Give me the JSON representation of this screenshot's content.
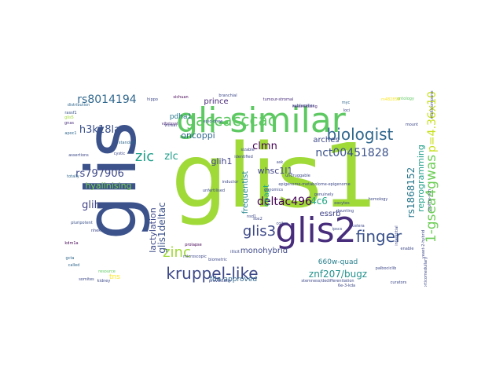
{
  "palette": {
    "dark_purple": "#440154",
    "indigo": "#46327e",
    "blue": "#365c8d",
    "steel": "#277f8e",
    "teal": "#1fa187",
    "green": "#4ac16d",
    "light_green": "#a0da39",
    "yellow": "#fde725"
  },
  "words": [
    {
      "text": "glis1",
      "color": "#a0da39"
    },
    {
      "text": "glis",
      "color": "#3b528b"
    },
    {
      "text": "gli-similar",
      "color": "#5ec962"
    },
    {
      "text": "glis2",
      "color": "#472d7b"
    },
    {
      "text": "kruppel-like",
      "color": "#3e4989"
    },
    {
      "text": "biologist",
      "color": "#31688e"
    },
    {
      "text": "gaccacccac",
      "color": "#5ec962"
    },
    {
      "text": "finger",
      "color": "#3b528b"
    },
    {
      "text": "zinc",
      "color": "#a0da39"
    },
    {
      "text": "1-gsea4gwas",
      "color": "#6ece58"
    },
    {
      "text": "p=4.36x10",
      "color": "#c8e020"
    },
    {
      "text": "glis3",
      "color": "#3e4989"
    },
    {
      "text": "deltac496",
      "color": "#440154"
    },
    {
      "text": "nct00451828",
      "color": "#3b528b"
    },
    {
      "text": "zic",
      "color": "#1f9e89"
    },
    {
      "text": "rs8014194",
      "color": "#31688e"
    },
    {
      "text": "h3k18la",
      "color": "#3b528b"
    },
    {
      "text": "rs797906",
      "color": "#3e4989"
    },
    {
      "text": "glih",
      "color": "#414487"
    },
    {
      "text": "glih1",
      "color": "#414487"
    },
    {
      "text": "clmn",
      "color": "#440154"
    },
    {
      "text": "zlc",
      "color": "#1f9e89"
    },
    {
      "text": "oncoppi",
      "color": "#31688e"
    },
    {
      "text": "lactylation",
      "color": "#3e4989"
    },
    {
      "text": "glis1deltac",
      "color": "#3b528b"
    },
    {
      "text": "hyalinising",
      "color": "#7ad151"
    },
    {
      "text": "whsc1l1",
      "color": "#414487"
    },
    {
      "text": "monohybrid",
      "color": "#3e4989"
    },
    {
      "text": "arches",
      "color": "#3e4989"
    },
    {
      "text": "reprogramming",
      "color": "#1f9e89"
    },
    {
      "text": "rs1868152",
      "color": "#2a788e"
    },
    {
      "text": "znf207/bugz",
      "color": "#21918c"
    },
    {
      "text": "fda-approved",
      "color": "#31688e"
    },
    {
      "text": "660w-quad",
      "color": "#277f8e"
    },
    {
      "text": "coapt",
      "color": "#22a884"
    },
    {
      "text": "4c6",
      "color": "#22a884"
    },
    {
      "text": "essrb",
      "color": "#414487"
    },
    {
      "text": "frequentist",
      "color": "#25858e"
    },
    {
      "text": "prince",
      "color": "#482878"
    },
    {
      "text": "pdha1",
      "color": "#2a788e"
    },
    {
      "text": "tns",
      "color": "#fde725"
    },
    {
      "text": "ontology",
      "color": "#5ec962"
    },
    {
      "text": "resensitizing",
      "color": "#482878"
    },
    {
      "text": "distribution",
      "color": "#31688e"
    },
    {
      "text": "hippo",
      "color": "#3e4989"
    },
    {
      "text": "sichuan",
      "color": "#440154"
    },
    {
      "text": "branchial",
      "color": "#3e4989"
    },
    {
      "text": "tumour-stromal",
      "color": "#472d7b"
    },
    {
      "text": "rs482858",
      "color": "#fde725"
    },
    {
      "text": "myc",
      "color": "#31688e"
    },
    {
      "text": "loci",
      "color": "#414487"
    },
    {
      "text": "rassf1",
      "color": "#3b528b"
    },
    {
      "text": "glis5",
      "color": "#a0da39"
    },
    {
      "text": "gnas",
      "color": "#472d7b"
    },
    {
      "text": "apoc1",
      "color": "#31688e"
    },
    {
      "text": "assertions",
      "color": "#3e4989"
    },
    {
      "text": "totally",
      "color": "#31688e"
    },
    {
      "text": "pluripotent",
      "color": "#3b528b"
    },
    {
      "text": "nhek",
      "color": "#3e4989"
    },
    {
      "text": "kdm1a",
      "color": "#440154"
    },
    {
      "text": "gcta",
      "color": "#31688e"
    },
    {
      "text": "called",
      "color": "#31688e"
    },
    {
      "text": "somites",
      "color": "#3e4989"
    },
    {
      "text": "standard",
      "color": "#31688e"
    },
    {
      "text": "vitreal",
      "color": "#414487"
    },
    {
      "text": "epic-drew",
      "color": "#3b528b"
    },
    {
      "text": "cystic",
      "color": "#3e4989"
    },
    {
      "text": "vibrissal",
      "color": "#482878"
    },
    {
      "text": "resource",
      "color": "#5ec962"
    },
    {
      "text": "kidney",
      "color": "#3e4989"
    },
    {
      "text": "pravastatin",
      "color": "#3e4989"
    },
    {
      "text": "stemness/dedifferentiation",
      "color": "#3e4989"
    },
    {
      "text": "curators",
      "color": "#3e4989"
    },
    {
      "text": "palbociclib",
      "color": "#3e4989"
    },
    {
      "text": "ipscs",
      "color": "#3e4989"
    },
    {
      "text": "prolapse",
      "color": "#440154"
    },
    {
      "text": "illicit",
      "color": "#3e4989"
    },
    {
      "text": "biometric",
      "color": "#3e4989"
    },
    {
      "text": "microscopic",
      "color": "#3e4989"
    },
    {
      "text": "homology",
      "color": "#3e4989"
    },
    {
      "text": "genomics",
      "color": "#3e4989"
    },
    {
      "text": "undruggable",
      "color": "#3e4989"
    },
    {
      "text": "epigenome-metabolome-epigenome",
      "color": "#3e4989"
    },
    {
      "text": "inductor",
      "color": "#3e4989"
    },
    {
      "text": "unfertilised",
      "color": "#3e4989"
    },
    {
      "text": "coitus",
      "color": "#3e4989"
    },
    {
      "text": "genuinely",
      "color": "#3e4989"
    },
    {
      "text": "oocytes",
      "color": "#3e4989"
    },
    {
      "text": "daunting",
      "color": "#3e4989"
    },
    {
      "text": "interstitial",
      "color": "#3e4989"
    },
    {
      "text": "enable",
      "color": "#3e4989"
    },
    {
      "text": "corticomedullary",
      "color": "#3e4989"
    },
    {
      "text": "multicomponent",
      "color": "#3e4989"
    },
    {
      "text": "mount",
      "color": "#3e4989"
    },
    {
      "text": "proline-rich",
      "color": "#3e4989"
    },
    {
      "text": "yeast-2-hybrid",
      "color": "#3e4989"
    },
    {
      "text": "celera",
      "color": "#3e4989"
    },
    {
      "text": "sizable",
      "color": "#3e4989"
    },
    {
      "text": "identified",
      "color": "#3e4989"
    },
    {
      "text": "ask",
      "color": "#3e4989"
    },
    {
      "text": "subfamilies",
      "color": "#3e4989"
    },
    {
      "text": "sox2",
      "color": "#3e4989"
    },
    {
      "text": "6e-3-kda",
      "color": "#3e4989"
    },
    {
      "text": "nsd1",
      "color": "#3e4989"
    }
  ]
}
